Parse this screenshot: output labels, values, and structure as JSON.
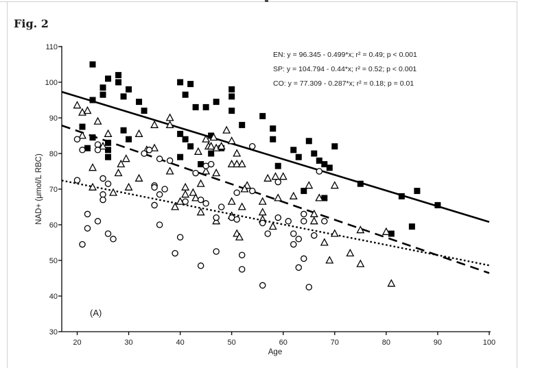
{
  "figure": {
    "label": "Fig. 2"
  },
  "colors": {
    "ink": "#000000",
    "text": "#1a1a1a",
    "frame": "#cfcfcf"
  },
  "chart_data": {
    "type": "scatter",
    "xlabel": "Age",
    "ylabel": "NAD+ (μmol/L RBC)",
    "panel_label": "(A)",
    "xlim": [
      17,
      100
    ],
    "ylim": [
      30,
      110
    ],
    "x_ticks": [
      20,
      30,
      40,
      50,
      60,
      70,
      80,
      90,
      100
    ],
    "y_ticks": [
      30,
      40,
      50,
      60,
      70,
      80,
      90,
      100,
      110
    ],
    "grid": false,
    "legend_position": "top-center",
    "legend": [
      {
        "series": "EN",
        "text": "EN: y = 96.345 - 0.499*x; r² = 0.49; p < 0.001"
      },
      {
        "series": "SP",
        "text": "SP: y = 104.794 - 0.44*x; r² = 0.52; p < 0.001"
      },
      {
        "series": "CO",
        "text": "CO: y = 77.309 - 0.287*x; r² = 0.18; p = 0.01"
      }
    ],
    "series": [
      {
        "name": "SP",
        "marker": "filled-square",
        "line_style": "solid",
        "regression": {
          "intercept": 104.794,
          "slope": -0.44,
          "r2": 0.52,
          "p": "< 0.001",
          "x_range": [
            17,
            100
          ]
        },
        "points": [
          [
            23,
            105
          ],
          [
            26,
            101
          ],
          [
            28,
            102
          ],
          [
            28,
            100
          ],
          [
            25,
            98.5
          ],
          [
            25,
            96.5
          ],
          [
            30,
            98
          ],
          [
            29,
            96
          ],
          [
            23,
            95
          ],
          [
            32,
            94.5
          ],
          [
            33,
            92
          ],
          [
            40,
            100
          ],
          [
            42,
            99.5
          ],
          [
            41,
            96.5
          ],
          [
            43,
            93
          ],
          [
            45,
            93
          ],
          [
            21,
            87.5
          ],
          [
            23,
            84.5
          ],
          [
            22,
            81.5
          ],
          [
            26,
            83
          ],
          [
            26,
            81
          ],
          [
            29,
            86.5
          ],
          [
            30,
            84
          ],
          [
            26,
            79
          ],
          [
            40,
            85.5
          ],
          [
            41,
            84
          ],
          [
            42,
            82
          ],
          [
            40,
            79
          ],
          [
            44,
            77
          ],
          [
            46,
            85
          ],
          [
            50,
            98
          ],
          [
            50,
            96
          ],
          [
            47,
            94.5
          ],
          [
            50,
            92
          ],
          [
            56,
            90.5
          ],
          [
            52,
            88
          ],
          [
            58,
            87
          ],
          [
            58,
            84
          ],
          [
            48,
            81.5
          ],
          [
            46,
            80
          ],
          [
            65,
            83.5
          ],
          [
            62,
            81
          ],
          [
            63,
            79
          ],
          [
            66,
            80
          ],
          [
            67,
            78
          ],
          [
            68,
            77
          ],
          [
            69,
            76
          ],
          [
            70,
            82
          ],
          [
            59,
            76.5
          ],
          [
            64,
            69.5
          ],
          [
            68,
            67.5
          ],
          [
            75,
            71.5
          ],
          [
            83,
            68
          ],
          [
            86,
            69.5
          ],
          [
            90,
            65.5
          ],
          [
            85,
            59.5
          ],
          [
            81,
            57.5
          ]
        ]
      },
      {
        "name": "EN",
        "marker": "open-triangle",
        "line_style": "long-dash",
        "regression": {
          "intercept": 96.345,
          "slope": -0.499,
          "r2": 0.49,
          "p": "< 0.001",
          "x_range": [
            17,
            100
          ]
        },
        "points": [
          [
            20,
            93.5
          ],
          [
            21,
            91.5
          ],
          [
            22,
            92
          ],
          [
            24,
            89
          ],
          [
            21,
            85
          ],
          [
            26,
            85.5
          ],
          [
            25,
            82
          ],
          [
            38,
            90
          ],
          [
            38,
            88
          ],
          [
            35,
            88
          ],
          [
            32,
            85.5
          ],
          [
            33.5,
            81
          ],
          [
            35,
            81.5
          ],
          [
            23,
            76
          ],
          [
            28,
            74.5
          ],
          [
            29.5,
            78.5
          ],
          [
            28.5,
            77
          ],
          [
            32,
            73
          ],
          [
            38,
            75
          ],
          [
            49,
            86.5
          ],
          [
            45,
            84
          ],
          [
            46.5,
            84.5
          ],
          [
            45.5,
            82
          ],
          [
            47,
            81.5
          ],
          [
            43.5,
            80.5
          ],
          [
            46,
            82
          ],
          [
            48,
            82
          ],
          [
            50,
            83.5
          ],
          [
            51,
            80
          ],
          [
            50,
            77
          ],
          [
            51,
            77
          ],
          [
            52,
            77
          ],
          [
            47,
            74.5
          ],
          [
            45,
            75
          ],
          [
            53,
            71
          ],
          [
            57,
            73
          ],
          [
            58.5,
            73.5
          ],
          [
            60,
            73.5
          ],
          [
            65,
            71
          ],
          [
            70,
            71
          ],
          [
            23,
            70.5
          ],
          [
            27,
            69
          ],
          [
            30,
            70.5
          ],
          [
            41,
            70.5
          ],
          [
            41,
            68.5
          ],
          [
            42.5,
            69
          ],
          [
            43,
            67.5
          ],
          [
            44,
            71.5
          ],
          [
            40,
            66.5
          ],
          [
            39,
            65
          ],
          [
            44,
            63.5
          ],
          [
            52.5,
            70
          ],
          [
            59,
            67.5
          ],
          [
            62,
            68
          ],
          [
            67,
            67.5
          ],
          [
            50,
            66.5
          ],
          [
            52,
            65
          ],
          [
            56,
            66.5
          ],
          [
            56,
            63.5
          ],
          [
            56,
            61.5
          ],
          [
            47,
            61
          ],
          [
            50,
            62.5
          ],
          [
            51,
            57.5
          ],
          [
            51.5,
            56.5
          ],
          [
            58,
            59.5
          ],
          [
            66,
            63
          ],
          [
            66,
            61
          ],
          [
            70,
            57.5
          ],
          [
            68,
            55
          ],
          [
            69,
            50
          ],
          [
            73,
            52
          ],
          [
            75,
            58.5
          ],
          [
            80,
            58
          ],
          [
            75,
            49
          ],
          [
            81,
            43.5
          ]
        ]
      },
      {
        "name": "CO",
        "marker": "open-circle",
        "line_style": "dot",
        "regression": {
          "intercept": 77.309,
          "slope": -0.287,
          "r2": 0.18,
          "p": "= 0.01",
          "x_range": [
            17,
            100
          ]
        },
        "points": [
          [
            20,
            84
          ],
          [
            21,
            81
          ],
          [
            24,
            82.5
          ],
          [
            24,
            81
          ],
          [
            33,
            80
          ],
          [
            34,
            81
          ],
          [
            36,
            78.5
          ],
          [
            38,
            78
          ],
          [
            20,
            72.5
          ],
          [
            25,
            73
          ],
          [
            26,
            71.5
          ],
          [
            35,
            71
          ],
          [
            43,
            74.5
          ],
          [
            45,
            76.5
          ],
          [
            54,
            82
          ],
          [
            46,
            77
          ],
          [
            67,
            75
          ],
          [
            59,
            72
          ],
          [
            25,
            68.5
          ],
          [
            25,
            67
          ],
          [
            35,
            70.5
          ],
          [
            36,
            68.5
          ],
          [
            37,
            70
          ],
          [
            35,
            65.5
          ],
          [
            41,
            66.5
          ],
          [
            44,
            67
          ],
          [
            45,
            66
          ],
          [
            22,
            63
          ],
          [
            24,
            61
          ],
          [
            22,
            59
          ],
          [
            26,
            57.5
          ],
          [
            27,
            56
          ],
          [
            21,
            54.5
          ],
          [
            36,
            60
          ],
          [
            40,
            56.5
          ],
          [
            39,
            52
          ],
          [
            44,
            48.5
          ],
          [
            51,
            69
          ],
          [
            54,
            69.5
          ],
          [
            48,
            65
          ],
          [
            47,
            62
          ],
          [
            50,
            62
          ],
          [
            51,
            61.5
          ],
          [
            56,
            60.5
          ],
          [
            59,
            62
          ],
          [
            61,
            61
          ],
          [
            64,
            61
          ],
          [
            64,
            63
          ],
          [
            62,
            57.5
          ],
          [
            63,
            56
          ],
          [
            62,
            54.5
          ],
          [
            57,
            57.5
          ],
          [
            68,
            61
          ],
          [
            66,
            57
          ],
          [
            47,
            52.5
          ],
          [
            52,
            51.5
          ],
          [
            52,
            47.5
          ],
          [
            64,
            50.5
          ],
          [
            63,
            48
          ],
          [
            56,
            43
          ],
          [
            65,
            42.5
          ]
        ]
      }
    ]
  }
}
